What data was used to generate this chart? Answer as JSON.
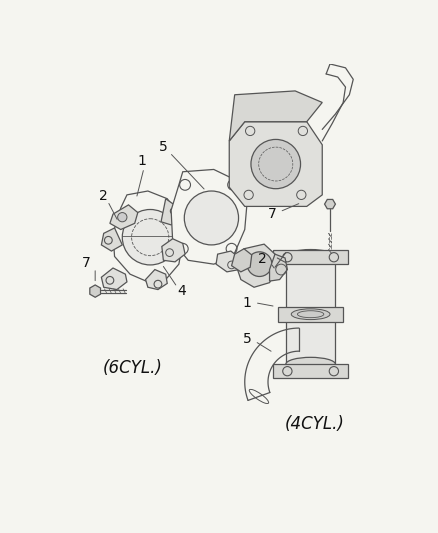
{
  "background_color": "#f5f5f0",
  "line_color": "#555555",
  "text_color": "#111111",
  "label_fontsize": 10,
  "six_cyl_label": "(6CYL.)",
  "four_cyl_label": "(4CYL.)",
  "fig_width": 4.39,
  "fig_height": 5.33,
  "dpi": 100
}
